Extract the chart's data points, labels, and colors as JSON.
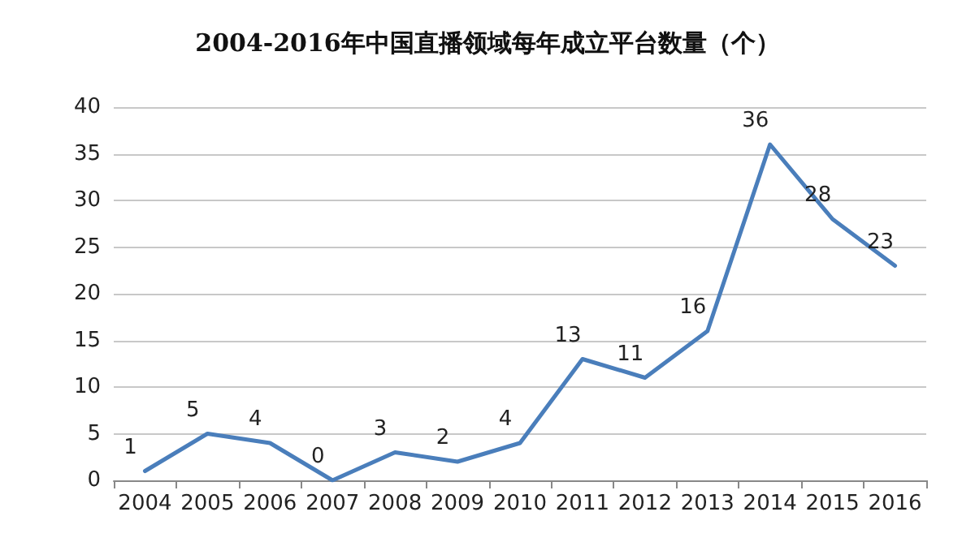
{
  "chart_data": {
    "type": "line",
    "title": "2004-2016年中国直播领域每年成立平台数量（个）",
    "categories": [
      "2004",
      "2005",
      "2006",
      "2007",
      "2008",
      "2009",
      "2010",
      "2011",
      "2012",
      "2013",
      "2014",
      "2015",
      "2016"
    ],
    "series": [
      {
        "color": "#4a7ebb",
        "values": [
          1,
          5,
          4,
          0,
          3,
          2,
          4,
          13,
          11,
          16,
          36,
          28,
          23
        ]
      }
    ],
    "ylim": [
      0,
      40
    ],
    "yticks": [
      0,
      5,
      10,
      15,
      20,
      25,
      30,
      35,
      40
    ],
    "grid": "y",
    "data_labels": true,
    "marker": "none",
    "line_style": "solid"
  }
}
